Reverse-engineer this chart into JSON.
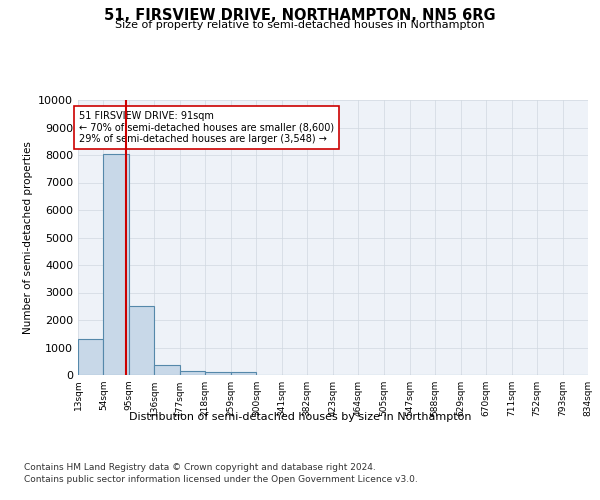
{
  "title": "51, FIRSVIEW DRIVE, NORTHAMPTON, NN5 6RG",
  "subtitle": "Size of property relative to semi-detached houses in Northampton",
  "xlabel_bottom": "Distribution of semi-detached houses by size in Northampton",
  "ylabel": "Number of semi-detached properties",
  "property_size": 91,
  "property_label": "51 FIRSVIEW DRIVE: 91sqm",
  "pct_smaller": 70,
  "n_smaller": 8600,
  "pct_larger": 29,
  "n_larger": 3548,
  "bin_edges": [
    13,
    54,
    95,
    136,
    177,
    218,
    259,
    300,
    341,
    382,
    423,
    464,
    505,
    547,
    588,
    629,
    670,
    711,
    752,
    793,
    834
  ],
  "bin_counts": [
    1300,
    8050,
    2500,
    375,
    150,
    125,
    100,
    0,
    0,
    0,
    0,
    0,
    0,
    0,
    0,
    0,
    0,
    0,
    0,
    0
  ],
  "bar_color": "#c8d8e8",
  "bar_edge_color": "#5588aa",
  "bar_linewidth": 0.8,
  "red_line_color": "#cc0000",
  "annotation_box_color": "#ffffff",
  "annotation_box_edge": "#cc0000",
  "grid_color": "#d0d8e0",
  "background_color": "#eef2f8",
  "ylim": [
    0,
    10000
  ],
  "yticks": [
    0,
    1000,
    2000,
    3000,
    4000,
    5000,
    6000,
    7000,
    8000,
    9000,
    10000
  ],
  "footer_line1": "Contains HM Land Registry data © Crown copyright and database right 2024.",
  "footer_line2": "Contains public sector information licensed under the Open Government Licence v3.0."
}
